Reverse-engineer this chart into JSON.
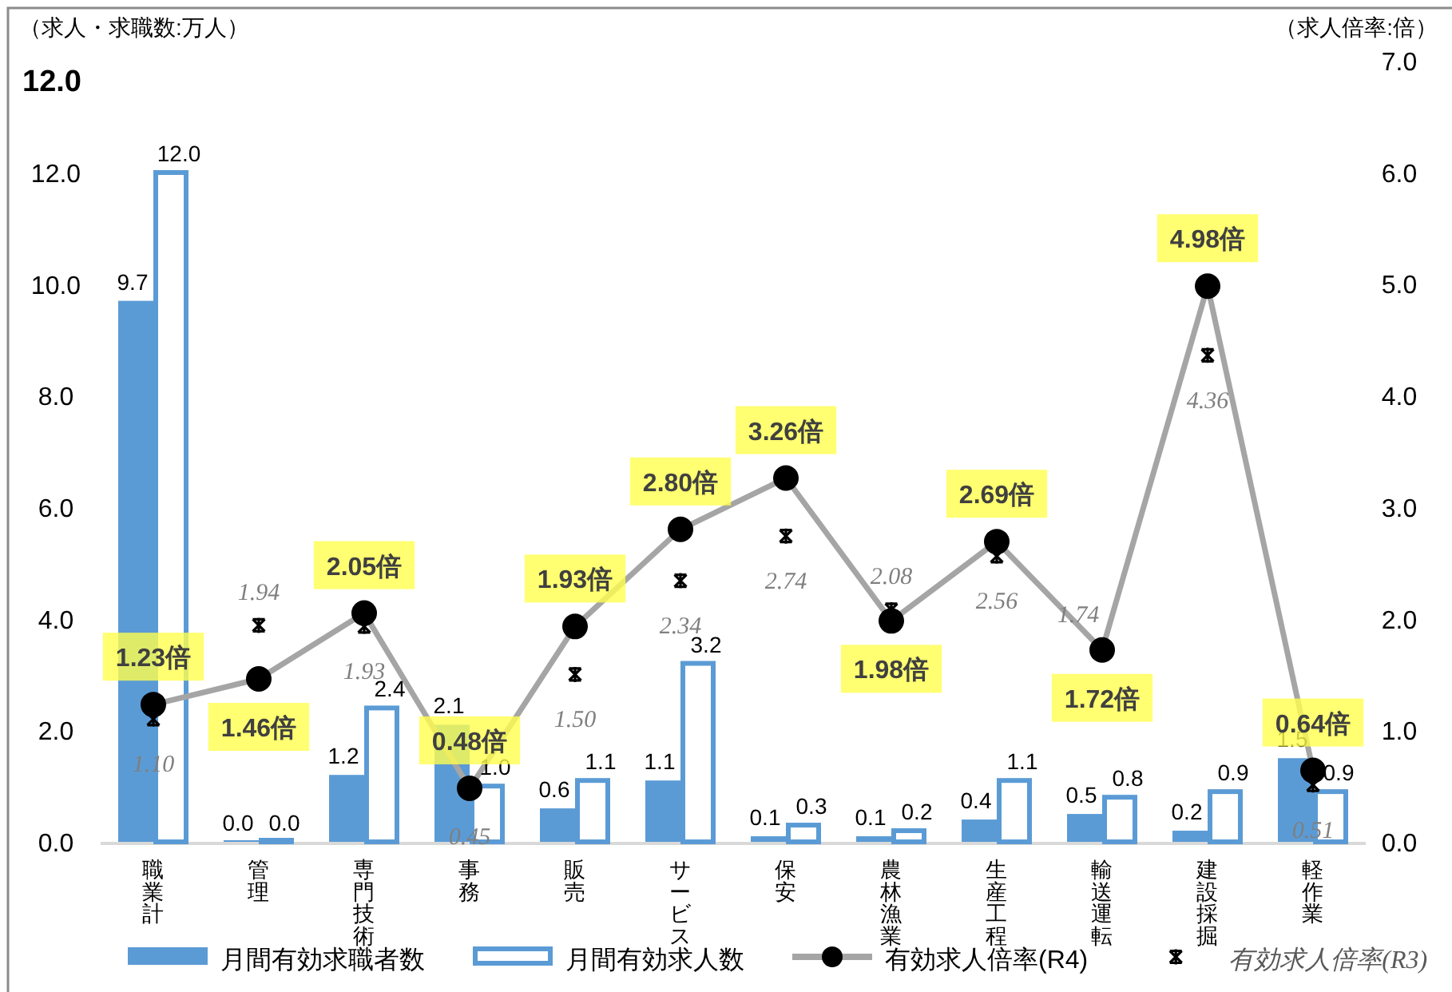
{
  "chart_data": {
    "type": "bar",
    "categories": [
      "職業計",
      "管理",
      "専門技術",
      "事務",
      "販売",
      "サービス",
      "保安",
      "農林漁業",
      "生産工程",
      "輸送運転",
      "建設採掘",
      "軽作業"
    ],
    "ylabel": "（求人・求職数:万人）",
    "y2label": "（求人倍率:倍）",
    "annotations": [
      "12.0"
    ],
    "ylim": [
      0,
      12
    ],
    "yticks": [
      {
        "value": 0,
        "label": "0.0"
      },
      {
        "value": 2,
        "label": "2.0"
      },
      {
        "value": 4,
        "label": "4.0"
      },
      {
        "value": 6,
        "label": "6.0"
      },
      {
        "value": 8,
        "label": "8.0"
      },
      {
        "value": 10,
        "label": "10.0"
      },
      {
        "value": 12,
        "label": "12.0"
      }
    ],
    "y2lim": [
      0,
      7
    ],
    "y2ticks": [
      {
        "value": 0,
        "label": "0.0"
      },
      {
        "value": 1,
        "label": "1.0"
      },
      {
        "value": 2,
        "label": "2.0"
      },
      {
        "value": 3,
        "label": "3.0"
      },
      {
        "value": 4,
        "label": "4.0"
      },
      {
        "value": 5,
        "label": "5.0"
      },
      {
        "value": 6,
        "label": "6.0"
      },
      {
        "value": 7,
        "label": "7.0"
      }
    ],
    "legend": "bottom",
    "series": [
      {
        "name": "月間有効求職者数",
        "color": "#5b9bd5",
        "values": [
          9.7,
          0.0,
          1.2,
          2.1,
          0.6,
          1.1,
          0.1,
          0.1,
          0.4,
          0.5,
          0.2,
          1.5
        ],
        "value_labels": [
          "9.7",
          "0.0",
          "1.2",
          "2.1",
          "0.6",
          "1.1",
          "0.1",
          "0.1",
          "0.4",
          "0.5",
          "0.2",
          "1.5"
        ]
      },
      {
        "name": "月間有効求人数",
        "color": "#5b9bd5",
        "values": [
          12.0,
          0.0,
          2.4,
          1.0,
          1.1,
          3.2,
          0.3,
          0.2,
          1.1,
          0.8,
          0.9,
          0.9
        ],
        "value_labels": [
          "12.0",
          "0.0",
          "2.4",
          "1.0",
          "1.1",
          "3.2",
          "0.3",
          "0.2",
          "1.1",
          "0.8",
          "0.9",
          "0.9"
        ]
      },
      {
        "name": "有効求人倍率(R4)",
        "type": "line",
        "axis": "y2",
        "color": "#a5a5a5",
        "marker": "circle",
        "line_style": "solid",
        "values": [
          1.23,
          1.46,
          2.05,
          0.48,
          1.93,
          2.8,
          3.26,
          1.98,
          2.69,
          1.72,
          4.98,
          0.64
        ],
        "value_labels": [
          "1.23倍",
          "1.46倍",
          "2.05倍",
          "0.48倍",
          "1.93倍",
          "2.80倍",
          "3.26倍",
          "1.98倍",
          "2.69倍",
          "1.72倍",
          "4.98倍",
          "0.64倍"
        ]
      },
      {
        "name": "有効求人倍率(R3)",
        "type": "scatter",
        "axis": "y2",
        "color": "#000000",
        "marker": "cross",
        "values": [
          1.1,
          1.94,
          1.93,
          0.45,
          1.5,
          2.34,
          2.74,
          2.08,
          2.56,
          1.74,
          4.36,
          0.51
        ],
        "value_labels": [
          "1.10",
          "1.94",
          "1.93",
          "0.45",
          "1.50",
          "2.34",
          "2.74",
          "2.08",
          "2.56",
          "1.74",
          "4.36",
          "0.51"
        ]
      }
    ]
  }
}
